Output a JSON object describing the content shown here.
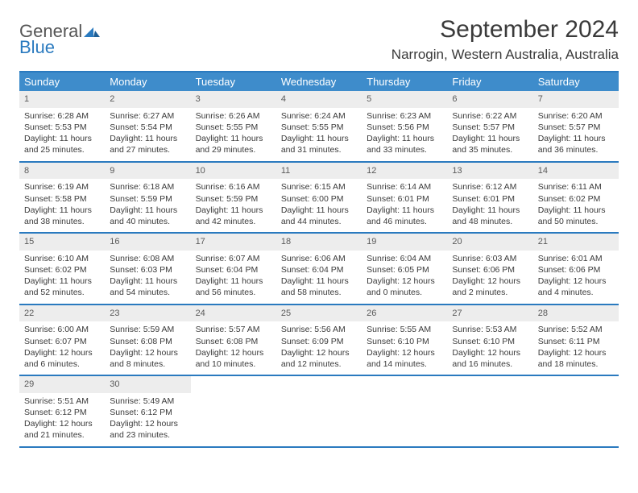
{
  "brand": {
    "part1": "General",
    "part2": "Blue"
  },
  "title": "September 2024",
  "location": "Narrogin, Western Australia, Australia",
  "colors": {
    "header_bg": "#3e8ccb",
    "header_text": "#ffffff",
    "border": "#2a7abf",
    "daynum_bg": "#ededed",
    "text": "#3a3a3a"
  },
  "day_names": [
    "Sunday",
    "Monday",
    "Tuesday",
    "Wednesday",
    "Thursday",
    "Friday",
    "Saturday"
  ],
  "weeks": [
    [
      {
        "n": "1",
        "sr": "Sunrise: 6:28 AM",
        "ss": "Sunset: 5:53 PM",
        "d1": "Daylight: 11 hours",
        "d2": "and 25 minutes."
      },
      {
        "n": "2",
        "sr": "Sunrise: 6:27 AM",
        "ss": "Sunset: 5:54 PM",
        "d1": "Daylight: 11 hours",
        "d2": "and 27 minutes."
      },
      {
        "n": "3",
        "sr": "Sunrise: 6:26 AM",
        "ss": "Sunset: 5:55 PM",
        "d1": "Daylight: 11 hours",
        "d2": "and 29 minutes."
      },
      {
        "n": "4",
        "sr": "Sunrise: 6:24 AM",
        "ss": "Sunset: 5:55 PM",
        "d1": "Daylight: 11 hours",
        "d2": "and 31 minutes."
      },
      {
        "n": "5",
        "sr": "Sunrise: 6:23 AM",
        "ss": "Sunset: 5:56 PM",
        "d1": "Daylight: 11 hours",
        "d2": "and 33 minutes."
      },
      {
        "n": "6",
        "sr": "Sunrise: 6:22 AM",
        "ss": "Sunset: 5:57 PM",
        "d1": "Daylight: 11 hours",
        "d2": "and 35 minutes."
      },
      {
        "n": "7",
        "sr": "Sunrise: 6:20 AM",
        "ss": "Sunset: 5:57 PM",
        "d1": "Daylight: 11 hours",
        "d2": "and 36 minutes."
      }
    ],
    [
      {
        "n": "8",
        "sr": "Sunrise: 6:19 AM",
        "ss": "Sunset: 5:58 PM",
        "d1": "Daylight: 11 hours",
        "d2": "and 38 minutes."
      },
      {
        "n": "9",
        "sr": "Sunrise: 6:18 AM",
        "ss": "Sunset: 5:59 PM",
        "d1": "Daylight: 11 hours",
        "d2": "and 40 minutes."
      },
      {
        "n": "10",
        "sr": "Sunrise: 6:16 AM",
        "ss": "Sunset: 5:59 PM",
        "d1": "Daylight: 11 hours",
        "d2": "and 42 minutes."
      },
      {
        "n": "11",
        "sr": "Sunrise: 6:15 AM",
        "ss": "Sunset: 6:00 PM",
        "d1": "Daylight: 11 hours",
        "d2": "and 44 minutes."
      },
      {
        "n": "12",
        "sr": "Sunrise: 6:14 AM",
        "ss": "Sunset: 6:01 PM",
        "d1": "Daylight: 11 hours",
        "d2": "and 46 minutes."
      },
      {
        "n": "13",
        "sr": "Sunrise: 6:12 AM",
        "ss": "Sunset: 6:01 PM",
        "d1": "Daylight: 11 hours",
        "d2": "and 48 minutes."
      },
      {
        "n": "14",
        "sr": "Sunrise: 6:11 AM",
        "ss": "Sunset: 6:02 PM",
        "d1": "Daylight: 11 hours",
        "d2": "and 50 minutes."
      }
    ],
    [
      {
        "n": "15",
        "sr": "Sunrise: 6:10 AM",
        "ss": "Sunset: 6:02 PM",
        "d1": "Daylight: 11 hours",
        "d2": "and 52 minutes."
      },
      {
        "n": "16",
        "sr": "Sunrise: 6:08 AM",
        "ss": "Sunset: 6:03 PM",
        "d1": "Daylight: 11 hours",
        "d2": "and 54 minutes."
      },
      {
        "n": "17",
        "sr": "Sunrise: 6:07 AM",
        "ss": "Sunset: 6:04 PM",
        "d1": "Daylight: 11 hours",
        "d2": "and 56 minutes."
      },
      {
        "n": "18",
        "sr": "Sunrise: 6:06 AM",
        "ss": "Sunset: 6:04 PM",
        "d1": "Daylight: 11 hours",
        "d2": "and 58 minutes."
      },
      {
        "n": "19",
        "sr": "Sunrise: 6:04 AM",
        "ss": "Sunset: 6:05 PM",
        "d1": "Daylight: 12 hours",
        "d2": "and 0 minutes."
      },
      {
        "n": "20",
        "sr": "Sunrise: 6:03 AM",
        "ss": "Sunset: 6:06 PM",
        "d1": "Daylight: 12 hours",
        "d2": "and 2 minutes."
      },
      {
        "n": "21",
        "sr": "Sunrise: 6:01 AM",
        "ss": "Sunset: 6:06 PM",
        "d1": "Daylight: 12 hours",
        "d2": "and 4 minutes."
      }
    ],
    [
      {
        "n": "22",
        "sr": "Sunrise: 6:00 AM",
        "ss": "Sunset: 6:07 PM",
        "d1": "Daylight: 12 hours",
        "d2": "and 6 minutes."
      },
      {
        "n": "23",
        "sr": "Sunrise: 5:59 AM",
        "ss": "Sunset: 6:08 PM",
        "d1": "Daylight: 12 hours",
        "d2": "and 8 minutes."
      },
      {
        "n": "24",
        "sr": "Sunrise: 5:57 AM",
        "ss": "Sunset: 6:08 PM",
        "d1": "Daylight: 12 hours",
        "d2": "and 10 minutes."
      },
      {
        "n": "25",
        "sr": "Sunrise: 5:56 AM",
        "ss": "Sunset: 6:09 PM",
        "d1": "Daylight: 12 hours",
        "d2": "and 12 minutes."
      },
      {
        "n": "26",
        "sr": "Sunrise: 5:55 AM",
        "ss": "Sunset: 6:10 PM",
        "d1": "Daylight: 12 hours",
        "d2": "and 14 minutes."
      },
      {
        "n": "27",
        "sr": "Sunrise: 5:53 AM",
        "ss": "Sunset: 6:10 PM",
        "d1": "Daylight: 12 hours",
        "d2": "and 16 minutes."
      },
      {
        "n": "28",
        "sr": "Sunrise: 5:52 AM",
        "ss": "Sunset: 6:11 PM",
        "d1": "Daylight: 12 hours",
        "d2": "and 18 minutes."
      }
    ],
    [
      {
        "n": "29",
        "sr": "Sunrise: 5:51 AM",
        "ss": "Sunset: 6:12 PM",
        "d1": "Daylight: 12 hours",
        "d2": "and 21 minutes."
      },
      {
        "n": "30",
        "sr": "Sunrise: 5:49 AM",
        "ss": "Sunset: 6:12 PM",
        "d1": "Daylight: 12 hours",
        "d2": "and 23 minutes."
      },
      null,
      null,
      null,
      null,
      null
    ]
  ]
}
